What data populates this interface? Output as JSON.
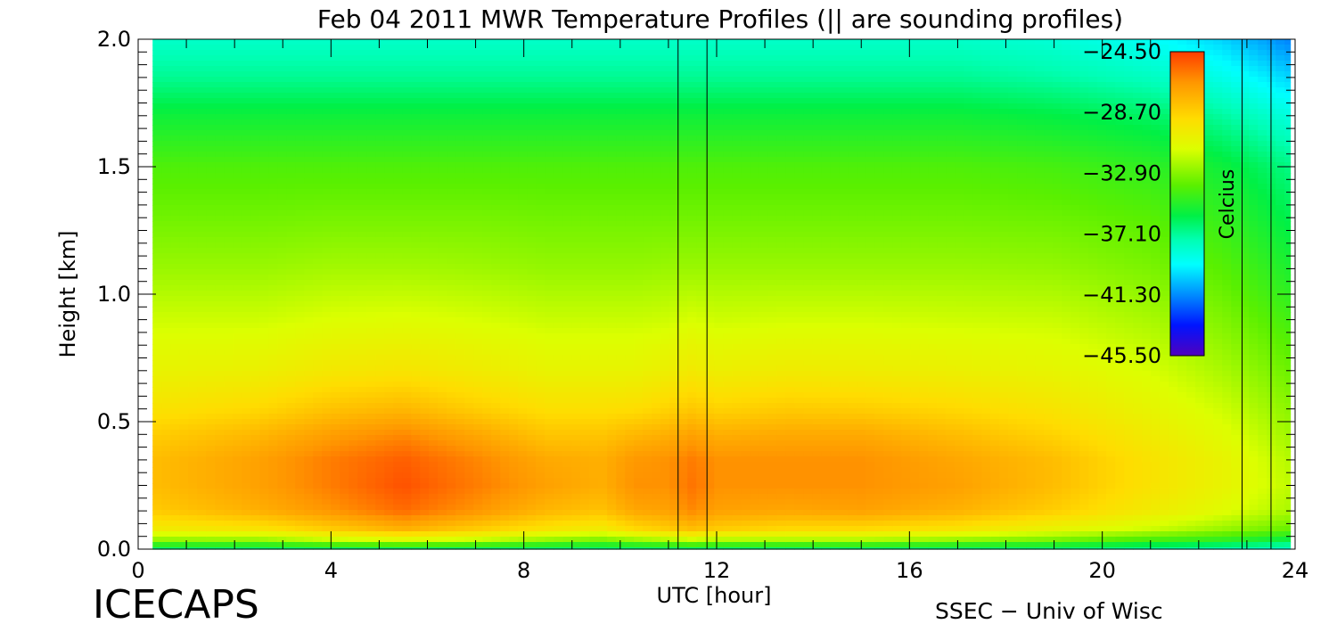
{
  "chart_data": {
    "type": "heatmap",
    "title": "Feb 04 2011 MWR Temperature Profiles (|| are sounding profiles)",
    "xlabel": "UTC [hour]",
    "ylabel": "Height [km]",
    "xlim": [
      0,
      24
    ],
    "ylim": [
      0.0,
      2.0
    ],
    "xticks": [
      0,
      4,
      8,
      12,
      16,
      20,
      24
    ],
    "xtick_labels": [
      "0",
      "4",
      "8",
      "12",
      "16",
      "20",
      "24"
    ],
    "yticks": [
      0.0,
      0.5,
      1.0,
      1.5,
      2.0
    ],
    "ytick_labels": [
      "0.0",
      "0.5",
      "1.0",
      "1.5",
      "2.0"
    ],
    "colorbar": {
      "label": "Celcius",
      "range": [
        -45.5,
        -24.5
      ],
      "tick_values": [
        -24.5,
        -28.7,
        -32.9,
        -37.1,
        -41.3,
        -45.5
      ],
      "tick_labels": [
        "−24.50",
        "−28.70",
        "−32.90",
        "−37.10",
        "−41.30",
        "−45.50"
      ]
    },
    "data_x_range": [
      0.3,
      23.9
    ],
    "sounding_profiles_utc": [
      11.2,
      11.8,
      22.9,
      23.5
    ],
    "temperature_field": {
      "heights_km": [
        0.0,
        0.03,
        0.08,
        0.15,
        0.25,
        0.35,
        0.45,
        0.55,
        0.7,
        0.9,
        1.1,
        1.3,
        1.5,
        1.7,
        1.85,
        2.0
      ],
      "profiles": [
        {
          "utc": 0.3,
          "temps_c": [
            -37,
            -33,
            -30,
            -28.5,
            -28,
            -28,
            -28.6,
            -29.5,
            -30.5,
            -31.5,
            -32.5,
            -33.3,
            -34,
            -35.5,
            -37,
            -38
          ]
        },
        {
          "utc": 2.5,
          "temps_c": [
            -37,
            -33,
            -29.5,
            -27.5,
            -27,
            -27,
            -27.8,
            -29,
            -30.3,
            -31.5,
            -32.5,
            -33.3,
            -34,
            -35.5,
            -37,
            -38
          ]
        },
        {
          "utc": 4.0,
          "temps_c": [
            -37,
            -32,
            -28.5,
            -26.6,
            -26,
            -26,
            -26.9,
            -28.2,
            -29.8,
            -31.2,
            -32.3,
            -33.2,
            -34,
            -35.5,
            -37,
            -38
          ]
        },
        {
          "utc": 5.5,
          "temps_c": [
            -37,
            -31.5,
            -27.5,
            -25.6,
            -25,
            -25.3,
            -26.3,
            -27.8,
            -29.6,
            -31.1,
            -32.3,
            -33.2,
            -34,
            -35.5,
            -37,
            -38
          ]
        },
        {
          "utc": 7.0,
          "temps_c": [
            -37,
            -32,
            -28.5,
            -26.6,
            -26,
            -26.2,
            -27.2,
            -28.6,
            -30,
            -31.3,
            -32.4,
            -33.2,
            -34,
            -35.5,
            -37,
            -38
          ]
        },
        {
          "utc": 8.5,
          "temps_c": [
            -37,
            -33,
            -29.5,
            -27.8,
            -27,
            -27.3,
            -28.3,
            -29.3,
            -30.5,
            -31.6,
            -32.6,
            -33.3,
            -34,
            -35.5,
            -37,
            -38
          ]
        },
        {
          "utc": 9.6,
          "temps_c": [
            -37,
            -33.5,
            -30,
            -28.2,
            -27.5,
            -27.5,
            -28.3,
            -29.3,
            -30.5,
            -31.6,
            -32.6,
            -33.3,
            -34,
            -35.5,
            -37,
            -38
          ]
        },
        {
          "utc": 10.3,
          "temps_c": [
            -37,
            -33,
            -29,
            -27.2,
            -26.5,
            -26.7,
            -27.8,
            -29.2,
            -30.5,
            -31.6,
            -32.6,
            -33.3,
            -34,
            -35.5,
            -37,
            -38
          ]
        },
        {
          "utc": 11.0,
          "temps_c": [
            -37,
            -32.5,
            -28.5,
            -27,
            -26.5,
            -26.5,
            -27.5,
            -28.8,
            -30.2,
            -31.5,
            -32.5,
            -33.3,
            -34,
            -35.5,
            -37,
            -38
          ]
        },
        {
          "utc": 11.5,
          "temps_c": [
            -37,
            -32,
            -28,
            -26.3,
            -25.8,
            -26,
            -27,
            -28.4,
            -29.9,
            -31.3,
            -32.5,
            -33.3,
            -34,
            -35.5,
            -37,
            -38
          ]
        },
        {
          "utc": 12.0,
          "temps_c": [
            -37,
            -32.5,
            -28.5,
            -27,
            -26.5,
            -26.5,
            -27.5,
            -28.8,
            -30.2,
            -31.5,
            -32.5,
            -33.3,
            -34,
            -35.5,
            -37,
            -38
          ]
        },
        {
          "utc": 13.5,
          "temps_c": [
            -37,
            -32.5,
            -29,
            -27.2,
            -26.5,
            -26.5,
            -27.3,
            -28.5,
            -30,
            -31.4,
            -32.5,
            -33.3,
            -34,
            -35.5,
            -37,
            -38
          ]
        },
        {
          "utc": 15.0,
          "temps_c": [
            -37,
            -32.5,
            -29,
            -27,
            -26.5,
            -26.5,
            -27.3,
            -28.6,
            -30.1,
            -31.4,
            -32.5,
            -33.3,
            -34,
            -35.5,
            -37,
            -38
          ]
        },
        {
          "utc": 17.0,
          "temps_c": [
            -37,
            -33,
            -29.5,
            -27.6,
            -27,
            -27.2,
            -28,
            -29,
            -30.3,
            -31.5,
            -32.5,
            -33.3,
            -34,
            -35.5,
            -37,
            -38
          ]
        },
        {
          "utc": 19.0,
          "temps_c": [
            -37,
            -33.5,
            -30.5,
            -28.6,
            -28,
            -28,
            -28.8,
            -29.6,
            -30.6,
            -31.6,
            -32.6,
            -33.4,
            -34.2,
            -35.8,
            -37.3,
            -38.3
          ]
        },
        {
          "utc": 21.0,
          "temps_c": [
            -37.5,
            -34.5,
            -31.5,
            -30,
            -29.5,
            -29.5,
            -30,
            -30.6,
            -31.3,
            -32.2,
            -33.1,
            -33.8,
            -34.7,
            -36.3,
            -37.8,
            -39
          ]
        },
        {
          "utc": 22.5,
          "temps_c": [
            -38,
            -35,
            -32.5,
            -31,
            -30.5,
            -30.5,
            -31,
            -31.5,
            -32.2,
            -33,
            -33.8,
            -34.6,
            -35.5,
            -37.2,
            -38.7,
            -40
          ]
        },
        {
          "utc": 23.9,
          "temps_c": [
            -38.5,
            -36,
            -33.5,
            -32.2,
            -31.8,
            -32,
            -32.4,
            -32.8,
            -33.4,
            -34.3,
            -35.2,
            -36,
            -36.8,
            -38.5,
            -40,
            -41.5
          ]
        }
      ]
    }
  },
  "footer": {
    "left": "ICECAPS",
    "right": "SSEC − Univ of Wisc"
  }
}
